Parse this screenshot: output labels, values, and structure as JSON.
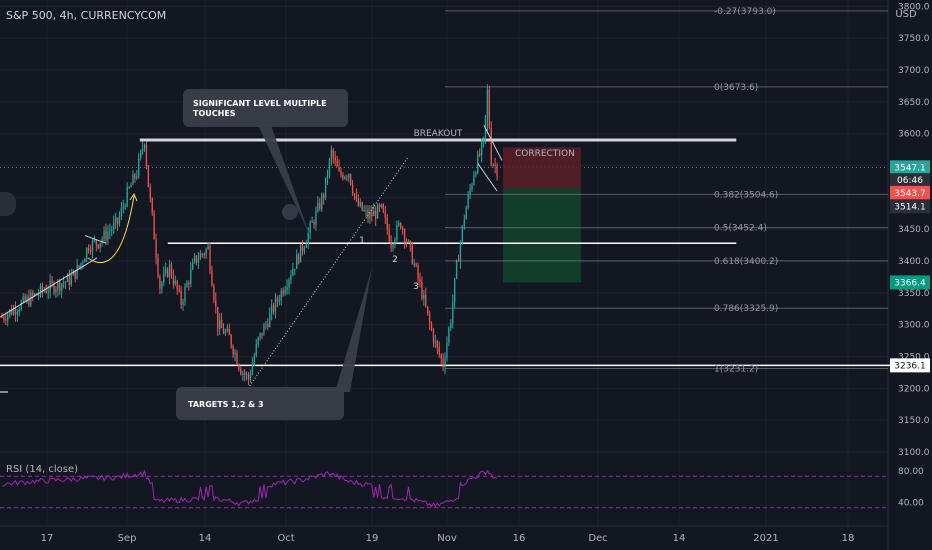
{
  "header": {
    "symbol_title": "S&P 500, 4h, CURRENCYCOM"
  },
  "colors": {
    "background": "#131722",
    "up_candle": "#26a69a",
    "down_candle": "#ef5350",
    "grid": "#1e222d",
    "axis_text": "#b2b5be",
    "fib_line": "#787b86",
    "level_line": "#ffffff",
    "rsi_line": "#9c27b0",
    "current_price_line": "#26a69a",
    "stop_zone": "#5c1f26",
    "target_zone": "#12432b",
    "annotation_box": "#3a3e4a",
    "curve_arrow": "#f9d949"
  },
  "price_axis": {
    "unit_label": "USD",
    "ticks": [
      "3800.0",
      "3750.0",
      "3700.0",
      "3650.0",
      "3600.0",
      "3550.0",
      "3500.0",
      "3450.0",
      "3400.0",
      "3350.0",
      "3300.0",
      "3250.0",
      "3200.0",
      "3150.0",
      "3100.0"
    ],
    "badges": [
      {
        "text": "3547.1",
        "bg": "#26a69a",
        "color": "#ffffff",
        "price": 3547.1
      },
      {
        "text": "06:46",
        "bg": "#2a2e39",
        "color": "#ffffff",
        "price": 3527.0
      },
      {
        "text": "3543.7",
        "bg": "#ef5350",
        "color": "#ffffff",
        "price": 3507.0
      },
      {
        "text": "3514.1",
        "bg": "#2a2e39",
        "color": "#ffffff",
        "price": 3486.0
      },
      {
        "text": "3366.4",
        "bg": "#089981",
        "color": "#ffffff",
        "price": 3366.4
      },
      {
        "text": "3236.1",
        "bg": "#ffffff",
        "color": "#131722",
        "price": 3236.1
      }
    ]
  },
  "time_axis": {
    "ticks": [
      "17",
      "Sep",
      "14",
      "Oct",
      "19",
      "Nov",
      "16",
      "Dec",
      "14",
      "2021",
      "18"
    ]
  },
  "chart_data": {
    "type": "candlestick",
    "title": "S&P 500, 4h, CURRENCYCOM",
    "timeframe": "4h",
    "ylim": [
      3100,
      3810
    ],
    "grid": true,
    "price_path_keypoints": [
      {
        "t": 0,
        "price": 3312
      },
      {
        "t": 10,
        "price": 3332
      },
      {
        "t": 22,
        "price": 3355
      },
      {
        "t": 35,
        "price": 3370
      },
      {
        "t": 40,
        "price": 3390
      },
      {
        "t": 45,
        "price": 3425
      },
      {
        "t": 50,
        "price": 3430
      },
      {
        "t": 60,
        "price": 3460
      },
      {
        "t": 65,
        "price": 3505
      },
      {
        "t": 70,
        "price": 3540
      },
      {
        "t": 74,
        "price": 3592
      },
      {
        "t": 76,
        "price": 3520
      },
      {
        "t": 79,
        "price": 3440
      },
      {
        "t": 82,
        "price": 3360
      },
      {
        "t": 87,
        "price": 3390
      },
      {
        "t": 93,
        "price": 3335
      },
      {
        "t": 100,
        "price": 3400
      },
      {
        "t": 107,
        "price": 3420
      },
      {
        "t": 112,
        "price": 3300
      },
      {
        "t": 118,
        "price": 3280
      },
      {
        "t": 124,
        "price": 3230
      },
      {
        "t": 128,
        "price": 3215
      },
      {
        "t": 133,
        "price": 3275
      },
      {
        "t": 140,
        "price": 3320
      },
      {
        "t": 148,
        "price": 3370
      },
      {
        "t": 155,
        "price": 3415
      },
      {
        "t": 162,
        "price": 3465
      },
      {
        "t": 167,
        "price": 3505
      },
      {
        "t": 171,
        "price": 3570
      },
      {
        "t": 175,
        "price": 3535
      },
      {
        "t": 180,
        "price": 3540
      },
      {
        "t": 184,
        "price": 3490
      },
      {
        "t": 190,
        "price": 3470
      },
      {
        "t": 197,
        "price": 3480
      },
      {
        "t": 202,
        "price": 3430
      },
      {
        "t": 207,
        "price": 3460
      },
      {
        "t": 213,
        "price": 3405
      },
      {
        "t": 218,
        "price": 3350
      },
      {
        "t": 222,
        "price": 3300
      },
      {
        "t": 226,
        "price": 3260
      },
      {
        "t": 229,
        "price": 3238
      },
      {
        "t": 233,
        "price": 3310
      },
      {
        "t": 236,
        "price": 3390
      },
      {
        "t": 240,
        "price": 3470
      },
      {
        "t": 245,
        "price": 3540
      },
      {
        "t": 250,
        "price": 3585
      },
      {
        "t": 252,
        "price": 3665
      },
      {
        "t": 254,
        "price": 3560
      },
      {
        "t": 257,
        "price": 3543.7
      }
    ],
    "horizontal_levels": [
      {
        "price": 3590,
        "x_from": 0.15,
        "x_to": 0.79,
        "label": "BREAKOUT"
      },
      {
        "price": 3428,
        "x_from": 0.18,
        "x_to": 0.79,
        "label": ""
      },
      {
        "price": 3236.1,
        "x_from": 0.0,
        "x_to": 0.955,
        "label": ""
      }
    ],
    "fibonacci": [
      {
        "label": "-0.27(3793.0)",
        "price": 3793.0
      },
      {
        "label": "0(3673.6)",
        "price": 3673.6
      },
      {
        "label": "0.382(3504.6)",
        "price": 3504.6
      },
      {
        "label": "0.5(3452.4)",
        "price": 3452.4
      },
      {
        "label": "0.618(3400.2)",
        "price": 3400.2
      },
      {
        "label": "0.786(3325.9)",
        "price": 3325.9
      },
      {
        "label": "1(3231.2)",
        "price": 3231.2
      }
    ],
    "position": {
      "entry": 3514.1,
      "stop": 3547.1,
      "target": 3366.4
    },
    "annotations": {
      "significant_level": "SIGNIFICANT LEVEL MULTIPLE TOUCHES",
      "targets": "TARGETS 1,2 & 3",
      "breakout": "BREAKOUT",
      "correction": "CORRECTION",
      "target_numbers": [
        "1",
        "2",
        "3"
      ]
    },
    "rsi": {
      "label": "RSI (14, close)",
      "upper": 70,
      "lower": 30,
      "ticks": [
        "80.00",
        "40.00"
      ],
      "keypoints": [
        {
          "t": 0,
          "v": 55
        },
        {
          "t": 15,
          "v": 60
        },
        {
          "t": 30,
          "v": 63
        },
        {
          "t": 45,
          "v": 66
        },
        {
          "t": 60,
          "v": 68
        },
        {
          "t": 74,
          "v": 76
        },
        {
          "t": 80,
          "v": 42
        },
        {
          "t": 95,
          "v": 45
        },
        {
          "t": 110,
          "v": 48
        },
        {
          "t": 125,
          "v": 38
        },
        {
          "t": 140,
          "v": 55
        },
        {
          "t": 155,
          "v": 62
        },
        {
          "t": 170,
          "v": 76
        },
        {
          "t": 180,
          "v": 60
        },
        {
          "t": 195,
          "v": 52
        },
        {
          "t": 210,
          "v": 48
        },
        {
          "t": 225,
          "v": 33
        },
        {
          "t": 232,
          "v": 42
        },
        {
          "t": 245,
          "v": 68
        },
        {
          "t": 252,
          "v": 80
        },
        {
          "t": 257,
          "v": 62
        }
      ]
    }
  }
}
